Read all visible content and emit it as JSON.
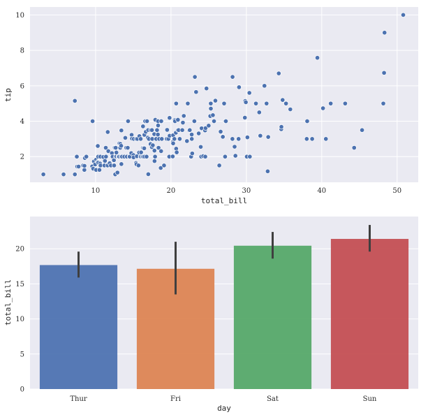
{
  "chart_data": [
    {
      "type": "scatter",
      "title": "",
      "xlabel": "total_bill",
      "ylabel": "tip",
      "xlim": [
        1.3,
        52.8
      ],
      "ylim": [
        0.55,
        10.45
      ],
      "xticks": [
        10,
        20,
        30,
        40,
        50
      ],
      "yticks": [
        2,
        4,
        6,
        8,
        10
      ],
      "grid": true,
      "background": "#EAEAF2",
      "grid_color": "#FFFFFF",
      "marker_color": "#4C72B0",
      "points": [
        [
          3.07,
          1.0
        ],
        [
          5.75,
          1.0
        ],
        [
          7.25,
          1.0
        ],
        [
          7.25,
          5.15
        ],
        [
          7.51,
          2.0
        ],
        [
          7.56,
          1.44
        ],
        [
          7.74,
          1.44
        ],
        [
          8.35,
          1.5
        ],
        [
          8.51,
          1.25
        ],
        [
          8.52,
          1.48
        ],
        [
          8.58,
          1.92
        ],
        [
          8.77,
          2.0
        ],
        [
          9.55,
          1.45
        ],
        [
          9.6,
          4.0
        ],
        [
          9.68,
          1.32
        ],
        [
          9.78,
          1.73
        ],
        [
          9.94,
          1.56
        ],
        [
          10.07,
          1.25
        ],
        [
          10.07,
          1.83
        ],
        [
          10.27,
          1.71
        ],
        [
          10.29,
          2.6
        ],
        [
          10.33,
          1.67
        ],
        [
          10.33,
          2.0
        ],
        [
          10.34,
          1.66
        ],
        [
          10.34,
          2.0
        ],
        [
          10.51,
          1.25
        ],
        [
          10.59,
          1.61
        ],
        [
          10.63,
          2.0
        ],
        [
          10.65,
          1.5
        ],
        [
          11.02,
          1.98
        ],
        [
          11.17,
          1.5
        ],
        [
          11.24,
          1.76
        ],
        [
          11.35,
          2.5
        ],
        [
          11.38,
          2.0
        ],
        [
          11.59,
          1.5
        ],
        [
          11.61,
          3.39
        ],
        [
          11.69,
          2.31
        ],
        [
          11.87,
          1.63
        ],
        [
          12.03,
          1.5
        ],
        [
          12.16,
          2.2
        ],
        [
          12.26,
          2.0
        ],
        [
          12.43,
          1.8
        ],
        [
          12.46,
          1.5
        ],
        [
          12.48,
          2.52
        ],
        [
          12.54,
          2.5
        ],
        [
          12.6,
          1.0
        ],
        [
          12.66,
          2.5
        ],
        [
          12.69,
          2.0
        ],
        [
          12.74,
          2.01
        ],
        [
          12.76,
          2.23
        ],
        [
          12.9,
          1.1
        ],
        [
          13.0,
          2.0
        ],
        [
          13.03,
          2.0
        ],
        [
          13.13,
          2.0
        ],
        [
          13.16,
          2.75
        ],
        [
          13.27,
          2.5
        ],
        [
          13.28,
          2.72
        ],
        [
          13.37,
          2.0
        ],
        [
          13.39,
          2.61
        ],
        [
          13.42,
          1.58
        ],
        [
          13.42,
          3.48
        ],
        [
          13.51,
          2.0
        ],
        [
          13.81,
          2.0
        ],
        [
          13.94,
          3.06
        ],
        [
          14.07,
          2.5
        ],
        [
          14.15,
          2.0
        ],
        [
          14.26,
          2.5
        ],
        [
          14.31,
          4.0
        ],
        [
          14.48,
          2.0
        ],
        [
          14.52,
          2.0
        ],
        [
          14.73,
          2.2
        ],
        [
          14.78,
          3.23
        ],
        [
          14.83,
          3.02
        ],
        [
          15.01,
          2.09
        ],
        [
          15.04,
          1.96
        ],
        [
          15.06,
          3.0
        ],
        [
          15.36,
          1.64
        ],
        [
          15.38,
          3.0
        ],
        [
          15.42,
          1.57
        ],
        [
          15.48,
          2.02
        ],
        [
          15.53,
          3.0
        ],
        [
          15.69,
          1.5
        ],
        [
          15.77,
          2.23
        ],
        [
          15.81,
          3.16
        ],
        [
          15.95,
          2.0
        ],
        [
          15.98,
          3.0
        ],
        [
          16.0,
          2.0
        ],
        [
          16.04,
          2.24
        ],
        [
          16.21,
          2.0
        ],
        [
          16.27,
          2.5
        ],
        [
          16.29,
          3.71
        ],
        [
          16.31,
          2.0
        ],
        [
          16.4,
          2.5
        ],
        [
          16.45,
          2.47
        ],
        [
          16.47,
          3.23
        ],
        [
          16.49,
          2.0
        ],
        [
          16.58,
          4.0
        ],
        [
          16.66,
          3.4
        ],
        [
          16.76,
          2.0
        ],
        [
          16.82,
          4.0
        ],
        [
          16.93,
          3.07
        ],
        [
          16.97,
          3.5
        ],
        [
          16.99,
          1.01
        ],
        [
          17.07,
          3.0
        ],
        [
          17.26,
          2.74
        ],
        [
          17.29,
          2.71
        ],
        [
          17.31,
          3.5
        ],
        [
          17.46,
          2.54
        ],
        [
          17.47,
          3.5
        ],
        [
          17.51,
          3.0
        ],
        [
          17.59,
          2.64
        ],
        [
          17.78,
          3.27
        ],
        [
          17.81,
          2.34
        ],
        [
          17.82,
          1.75
        ],
        [
          17.89,
          2.0
        ],
        [
          17.92,
          4.08
        ],
        [
          18.04,
          3.0
        ],
        [
          18.15,
          3.5
        ],
        [
          18.24,
          3.76
        ],
        [
          18.26,
          3.25
        ],
        [
          18.28,
          4.0
        ],
        [
          18.29,
          3.76
        ],
        [
          18.35,
          2.5
        ],
        [
          18.43,
          3.0
        ],
        [
          18.64,
          1.36
        ],
        [
          18.69,
          2.31
        ],
        [
          18.71,
          4.0
        ],
        [
          18.78,
          3.0
        ],
        [
          19.08,
          1.5
        ],
        [
          19.44,
          3.0
        ],
        [
          19.49,
          3.51
        ],
        [
          19.65,
          3.0
        ],
        [
          19.77,
          2.0
        ],
        [
          19.81,
          4.19
        ],
        [
          19.82,
          3.18
        ],
        [
          20.23,
          2.01
        ],
        [
          20.27,
          2.83
        ],
        [
          20.29,
          3.21
        ],
        [
          20.29,
          2.75
        ],
        [
          20.45,
          3.0
        ],
        [
          20.49,
          4.06
        ],
        [
          20.53,
          4.0
        ],
        [
          20.65,
          3.35
        ],
        [
          20.69,
          2.45
        ],
        [
          20.69,
          5.0
        ],
        [
          20.76,
          2.24
        ],
        [
          20.9,
          3.5
        ],
        [
          20.92,
          4.08
        ],
        [
          21.01,
          3.5
        ],
        [
          21.16,
          3.0
        ],
        [
          21.5,
          3.5
        ],
        [
          21.58,
          3.92
        ],
        [
          21.7,
          4.3
        ],
        [
          22.12,
          2.88
        ],
        [
          22.23,
          5.0
        ],
        [
          22.42,
          3.48
        ],
        [
          22.49,
          3.5
        ],
        [
          22.67,
          2.0
        ],
        [
          22.75,
          3.25
        ],
        [
          22.76,
          3.0
        ],
        [
          22.82,
          2.18
        ],
        [
          23.1,
          4.0
        ],
        [
          23.17,
          6.5
        ],
        [
          23.33,
          5.65
        ],
        [
          23.68,
          3.31
        ],
        [
          23.95,
          2.55
        ],
        [
          24.01,
          2.0
        ],
        [
          24.06,
          3.6
        ],
        [
          24.27,
          2.03
        ],
        [
          24.52,
          3.48
        ],
        [
          24.55,
          2.0
        ],
        [
          24.59,
          3.61
        ],
        [
          24.71,
          5.85
        ],
        [
          25.0,
          3.75
        ],
        [
          25.21,
          4.29
        ],
        [
          25.28,
          5.0
        ],
        [
          25.29,
          4.71
        ],
        [
          25.56,
          4.34
        ],
        [
          25.71,
          4.0
        ],
        [
          25.89,
          5.16
        ],
        [
          26.41,
          1.5
        ],
        [
          26.59,
          3.41
        ],
        [
          26.86,
          3.14
        ],
        [
          26.88,
          3.12
        ],
        [
          27.05,
          5.0
        ],
        [
          27.18,
          2.0
        ],
        [
          27.2,
          4.0
        ],
        [
          27.28,
          4.0
        ],
        [
          28.15,
          3.0
        ],
        [
          28.17,
          6.5
        ],
        [
          28.44,
          2.56
        ],
        [
          28.55,
          2.05
        ],
        [
          28.97,
          3.0
        ],
        [
          29.03,
          5.92
        ],
        [
          29.8,
          4.2
        ],
        [
          29.85,
          5.14
        ],
        [
          29.93,
          5.07
        ],
        [
          30.06,
          2.0
        ],
        [
          30.14,
          3.09
        ],
        [
          30.4,
          5.6
        ],
        [
          30.46,
          2.0
        ],
        [
          31.27,
          5.0
        ],
        [
          31.71,
          4.5
        ],
        [
          31.85,
          3.18
        ],
        [
          32.4,
          6.0
        ],
        [
          32.68,
          5.0
        ],
        [
          32.83,
          1.17
        ],
        [
          32.9,
          3.11
        ],
        [
          34.3,
          6.7
        ],
        [
          34.63,
          3.55
        ],
        [
          34.65,
          3.68
        ],
        [
          34.81,
          5.2
        ],
        [
          35.26,
          5.0
        ],
        [
          35.83,
          4.67
        ],
        [
          38.01,
          3.0
        ],
        [
          38.07,
          4.0
        ],
        [
          38.73,
          3.0
        ],
        [
          39.42,
          7.58
        ],
        [
          40.17,
          4.73
        ],
        [
          40.55,
          3.0
        ],
        [
          41.19,
          5.0
        ],
        [
          43.11,
          5.0
        ],
        [
          44.3,
          2.5
        ],
        [
          45.35,
          3.5
        ],
        [
          48.17,
          5.0
        ],
        [
          48.27,
          6.73
        ],
        [
          48.33,
          9.0
        ],
        [
          50.81,
          10.0
        ]
      ]
    },
    {
      "type": "bar",
      "title": "",
      "xlabel": "day",
      "ylabel": "total_bill",
      "categories": [
        "Thur",
        "Fri",
        "Sat",
        "Sun"
      ],
      "values": [
        17.68,
        17.15,
        20.44,
        21.41
      ],
      "ci_lower": [
        15.9,
        13.5,
        18.6,
        19.6
      ],
      "ci_upper": [
        19.6,
        21.0,
        22.4,
        23.4
      ],
      "colors": [
        "#4C72B0",
        "#DD8452",
        "#55A868",
        "#C44E52"
      ],
      "bar_alpha": 0.94,
      "errorbar_color": "#3F3F3F",
      "ylim": [
        0,
        24.6
      ],
      "yticks": [
        0,
        5,
        10,
        15,
        20
      ],
      "grid": true,
      "background": "#EAEAF2",
      "grid_color": "#FFFFFF"
    }
  ]
}
